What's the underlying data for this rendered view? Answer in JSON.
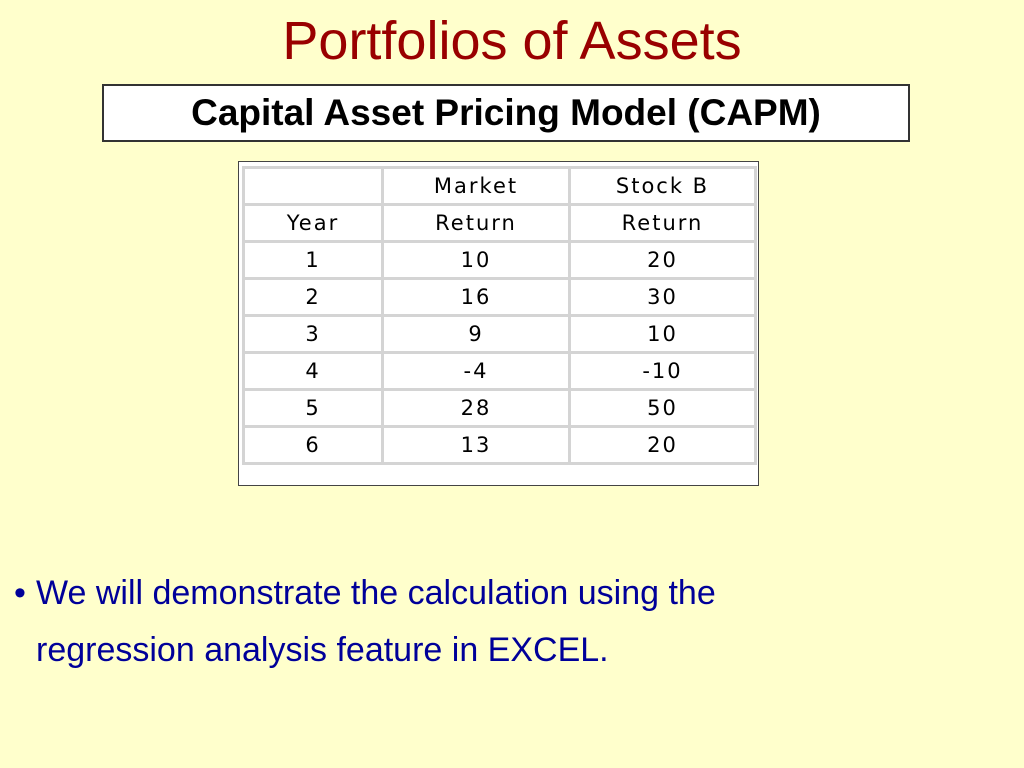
{
  "title": "Portfolios of Assets",
  "subtitle": "Capital Asset Pricing Model (CAPM)",
  "table": {
    "header_row1": [
      "",
      "Market",
      "Stock B"
    ],
    "header_row2": [
      "Year",
      "Return",
      "Return"
    ],
    "rows": [
      [
        "1",
        "10",
        "20"
      ],
      [
        "2",
        "16",
        "30"
      ],
      [
        "3",
        "9",
        "10"
      ],
      [
        "4",
        "-4",
        "-10"
      ],
      [
        "5",
        "28",
        "50"
      ],
      [
        "6",
        "13",
        "20"
      ]
    ]
  },
  "bullet": {
    "mark": "•",
    "line1": "We will demonstrate the calculation using the",
    "line2": "regression analysis feature in EXCEL."
  },
  "colors": {
    "background": "#ffffcc",
    "title": "#990000",
    "bullet_text": "#000099"
  }
}
